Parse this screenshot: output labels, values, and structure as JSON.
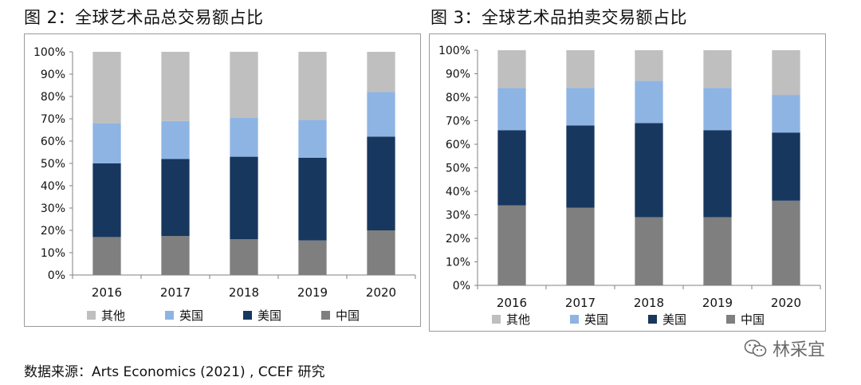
{
  "titles": {
    "left": "图 2：全球艺术品总交易额占比",
    "right": "图 3：全球艺术品拍卖交易额占比"
  },
  "source": "数据来源：Arts Economics (2021) , CCEF 研究",
  "watermark": "林采宜",
  "colors": {
    "其他": "#bfbfbf",
    "英国": "#8eb4e3",
    "美国": "#17375e",
    "中国": "#7f7f7f"
  },
  "chart_data": [
    {
      "type": "bar",
      "stacked": true,
      "title": "图 2：全球艺术品总交易额占比",
      "categories": [
        "2016",
        "2017",
        "2018",
        "2019",
        "2020"
      ],
      "ylim": [
        0,
        100
      ],
      "yticks": [
        "0%",
        "10%",
        "20%",
        "30%",
        "40%",
        "50%",
        "60%",
        "70%",
        "80%",
        "90%",
        "100%"
      ],
      "legend_position": "bottom",
      "series": [
        {
          "name": "中国",
          "color": "#7f7f7f",
          "values": [
            17,
            17.5,
            16,
            15.5,
            20
          ]
        },
        {
          "name": "美国",
          "color": "#17375e",
          "values": [
            33,
            34.5,
            37,
            37,
            42
          ]
        },
        {
          "name": "英国",
          "color": "#8eb4e3",
          "values": [
            18,
            17,
            17.5,
            17,
            20
          ]
        },
        {
          "name": "其他",
          "color": "#bfbfbf",
          "values": [
            32,
            31,
            29.5,
            30.5,
            18
          ]
        }
      ],
      "legend_order": [
        "其他",
        "英国",
        "美国",
        "中国"
      ]
    },
    {
      "type": "bar",
      "stacked": true,
      "title": "图 3：全球艺术品拍卖交易额占比",
      "categories": [
        "2016",
        "2017",
        "2018",
        "2019",
        "2020"
      ],
      "ylim": [
        0,
        100
      ],
      "yticks": [
        "0%",
        "10%",
        "20%",
        "30%",
        "40%",
        "50%",
        "60%",
        "70%",
        "80%",
        "90%",
        "100%"
      ],
      "legend_position": "bottom",
      "series": [
        {
          "name": "中国",
          "color": "#7f7f7f",
          "values": [
            34,
            33,
            29,
            29,
            36
          ]
        },
        {
          "name": "美国",
          "color": "#17375e",
          "values": [
            32,
            35,
            40,
            37,
            29
          ]
        },
        {
          "name": "英国",
          "color": "#8eb4e3",
          "values": [
            18,
            16,
            18,
            18,
            16
          ]
        },
        {
          "name": "其他",
          "color": "#bfbfbf",
          "values": [
            16,
            16,
            13,
            16,
            19
          ]
        }
      ],
      "legend_order": [
        "其他",
        "英国",
        "美国",
        "中国"
      ]
    }
  ]
}
